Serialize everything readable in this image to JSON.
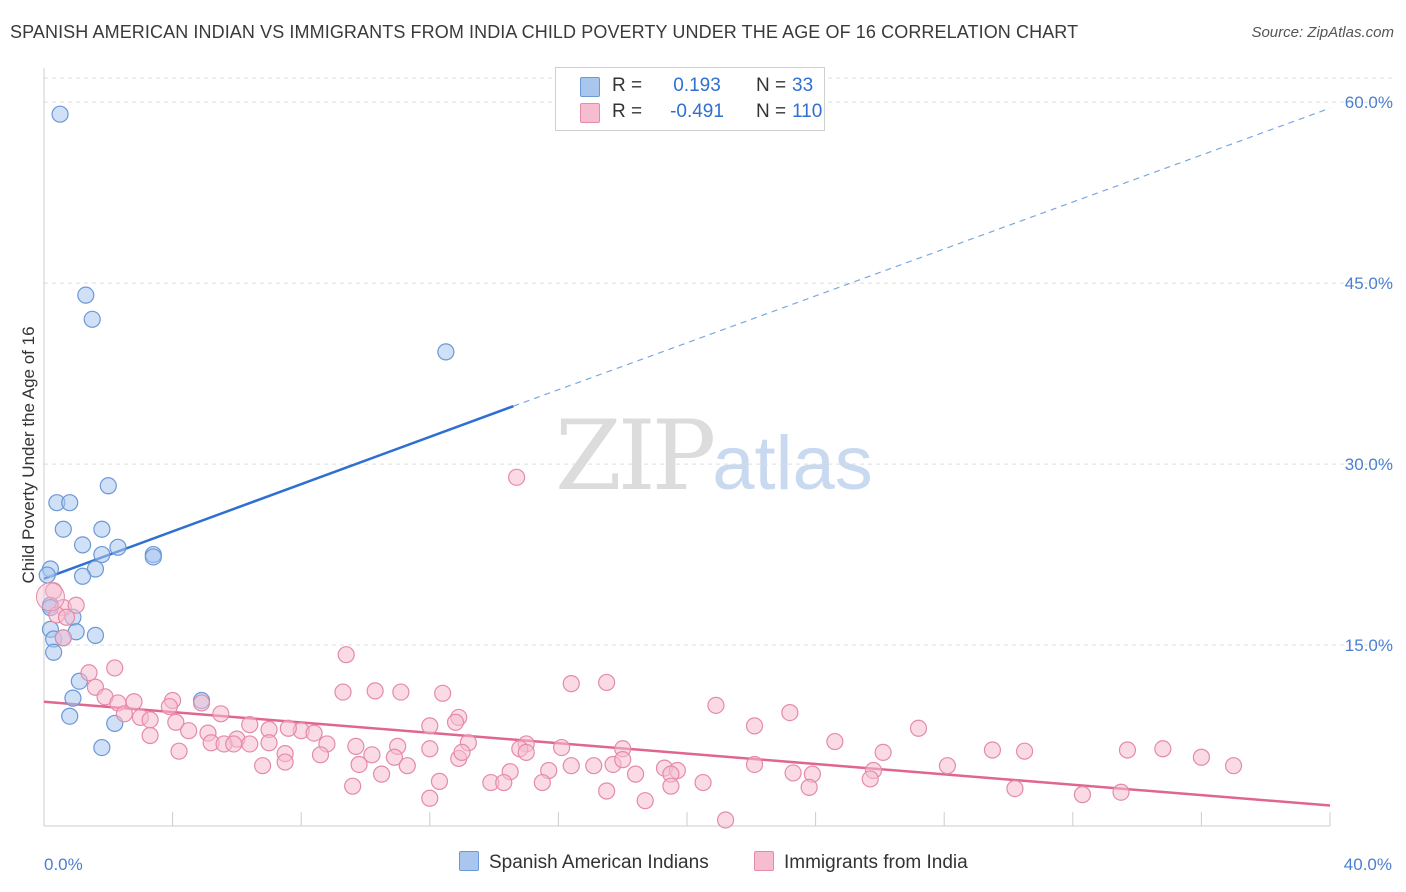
{
  "title": "SPANISH AMERICAN INDIAN VS IMMIGRANTS FROM INDIA CHILD POVERTY UNDER THE AGE OF 16 CORRELATION CHART",
  "source": "Source: ZipAtlas.com",
  "watermark": {
    "zip": "ZIP",
    "atlas": "atlas"
  },
  "legend": {
    "rows": [
      {
        "r_label": "R =",
        "r_value": "0.193",
        "n_label": "N =",
        "n_value": "33",
        "color": "#a9c6ef",
        "stroke": "#6b98d6"
      },
      {
        "r_label": "R =",
        "r_value": "-0.491",
        "n_label": "N =",
        "n_value": "110",
        "color": "#f6bdd0",
        "stroke": "#e58aa8"
      }
    ]
  },
  "bottom_legend": [
    {
      "label": "Spanish American Indians",
      "color": "#a9c6ef",
      "stroke": "#6b98d6"
    },
    {
      "label": "Immigrants from India",
      "color": "#f6bdd0",
      "stroke": "#e58aa8"
    }
  ],
  "chart_data": {
    "type": "scatter",
    "title": "SPANISH AMERICAN INDIAN VS IMMIGRANTS FROM INDIA CHILD POVERTY UNDER THE AGE OF 16 CORRELATION CHART",
    "xlabel": "",
    "ylabel": "Child Poverty Under the Age of 16",
    "xlim": [
      0,
      40
    ],
    "ylim": [
      0,
      62
    ],
    "x_tick_labels": [
      "0.0%",
      "40.0%"
    ],
    "y_ticks": [
      15,
      30,
      45,
      60
    ],
    "y_tick_labels": [
      "15.0%",
      "30.0%",
      "45.0%",
      "60.0%"
    ],
    "series": [
      {
        "name": "Spanish American Indians",
        "color": "#a9c6ef",
        "stroke": "#6b98d6",
        "points": [
          [
            0.5,
            59.0
          ],
          [
            1.3,
            44.0
          ],
          [
            1.5,
            42.0
          ],
          [
            12.5,
            39.3
          ],
          [
            2.0,
            28.2
          ],
          [
            0.4,
            26.8
          ],
          [
            0.8,
            26.8
          ],
          [
            0.6,
            24.6
          ],
          [
            1.8,
            24.6
          ],
          [
            1.2,
            23.3
          ],
          [
            2.3,
            23.1
          ],
          [
            1.8,
            22.5
          ],
          [
            3.4,
            22.5
          ],
          [
            3.4,
            22.3
          ],
          [
            0.2,
            21.3
          ],
          [
            1.6,
            21.3
          ],
          [
            1.2,
            20.7
          ],
          [
            0.1,
            20.8
          ],
          [
            0.2,
            18.3
          ],
          [
            0.9,
            17.3
          ],
          [
            0.2,
            16.3
          ],
          [
            1.0,
            16.1
          ],
          [
            1.6,
            15.8
          ],
          [
            0.3,
            15.5
          ],
          [
            0.6,
            15.6
          ],
          [
            0.3,
            14.4
          ],
          [
            1.1,
            12.0
          ],
          [
            0.9,
            10.6
          ],
          [
            4.9,
            10.4
          ],
          [
            0.8,
            9.1
          ],
          [
            2.2,
            8.5
          ],
          [
            1.8,
            6.5
          ],
          [
            0.2,
            18.1
          ]
        ]
      },
      {
        "name": "Immigrants from India",
        "color": "#f6bdd0",
        "stroke": "#e58aa8",
        "points": [
          [
            0.3,
            19.5
          ],
          [
            0.6,
            18.1
          ],
          [
            1.0,
            18.3
          ],
          [
            0.4,
            17.5
          ],
          [
            0.7,
            17.3
          ],
          [
            0.6,
            15.6
          ],
          [
            14.7,
            28.9
          ],
          [
            9.4,
            14.2
          ],
          [
            2.2,
            13.1
          ],
          [
            1.4,
            12.7
          ],
          [
            16.4,
            11.8
          ],
          [
            17.5,
            11.9
          ],
          [
            9.3,
            11.1
          ],
          [
            10.3,
            11.2
          ],
          [
            11.1,
            11.1
          ],
          [
            12.4,
            11.0
          ],
          [
            1.6,
            11.5
          ],
          [
            1.9,
            10.7
          ],
          [
            2.3,
            10.2
          ],
          [
            2.8,
            10.3
          ],
          [
            4.0,
            10.4
          ],
          [
            4.9,
            10.2
          ],
          [
            3.9,
            9.9
          ],
          [
            5.5,
            9.3
          ],
          [
            2.5,
            9.3
          ],
          [
            3.0,
            9.0
          ],
          [
            20.9,
            10.0
          ],
          [
            23.2,
            9.4
          ],
          [
            12.9,
            9.0
          ],
          [
            3.3,
            8.8
          ],
          [
            4.1,
            8.6
          ],
          [
            6.4,
            8.4
          ],
          [
            7.0,
            8.0
          ],
          [
            8.0,
            7.9
          ],
          [
            12.0,
            8.3
          ],
          [
            12.8,
            8.6
          ],
          [
            22.1,
            8.3
          ],
          [
            27.2,
            8.1
          ],
          [
            4.5,
            7.9
          ],
          [
            5.1,
            7.7
          ],
          [
            7.6,
            8.1
          ],
          [
            8.4,
            7.7
          ],
          [
            6.0,
            7.2
          ],
          [
            3.3,
            7.5
          ],
          [
            4.2,
            6.2
          ],
          [
            5.2,
            6.9
          ],
          [
            5.6,
            6.8
          ],
          [
            5.9,
            6.8
          ],
          [
            6.4,
            6.8
          ],
          [
            7.0,
            6.9
          ],
          [
            8.8,
            6.8
          ],
          [
            9.7,
            6.6
          ],
          [
            11.0,
            6.6
          ],
          [
            12.0,
            6.4
          ],
          [
            13.2,
            6.9
          ],
          [
            15.0,
            6.8
          ],
          [
            14.8,
            6.4
          ],
          [
            16.1,
            6.5
          ],
          [
            18.0,
            6.4
          ],
          [
            24.6,
            7.0
          ],
          [
            26.1,
            6.1
          ],
          [
            29.5,
            6.3
          ],
          [
            30.5,
            6.2
          ],
          [
            33.7,
            6.3
          ],
          [
            34.8,
            6.4
          ],
          [
            36.0,
            5.7
          ],
          [
            7.5,
            6.0
          ],
          [
            8.6,
            5.9
          ],
          [
            10.2,
            5.9
          ],
          [
            10.9,
            5.7
          ],
          [
            12.9,
            5.6
          ],
          [
            13.0,
            6.1
          ],
          [
            15.0,
            6.1
          ],
          [
            16.4,
            5.0
          ],
          [
            17.1,
            5.0
          ],
          [
            17.7,
            5.1
          ],
          [
            18.0,
            5.5
          ],
          [
            7.5,
            5.3
          ],
          [
            9.8,
            5.1
          ],
          [
            11.3,
            5.0
          ],
          [
            19.3,
            4.8
          ],
          [
            19.7,
            4.6
          ],
          [
            22.1,
            5.1
          ],
          [
            25.8,
            4.6
          ],
          [
            28.1,
            5.0
          ],
          [
            37.0,
            5.0
          ],
          [
            6.8,
            5.0
          ],
          [
            10.5,
            4.3
          ],
          [
            14.5,
            4.5
          ],
          [
            15.7,
            4.6
          ],
          [
            18.4,
            4.3
          ],
          [
            19.5,
            4.3
          ],
          [
            23.3,
            4.4
          ],
          [
            23.9,
            4.3
          ],
          [
            12.3,
            3.7
          ],
          [
            13.9,
            3.6
          ],
          [
            14.3,
            3.6
          ],
          [
            15.5,
            3.6
          ],
          [
            9.6,
            3.3
          ],
          [
            17.5,
            2.9
          ],
          [
            19.5,
            3.3
          ],
          [
            20.5,
            3.6
          ],
          [
            23.8,
            3.2
          ],
          [
            30.2,
            3.1
          ],
          [
            32.3,
            2.6
          ],
          [
            33.5,
            2.8
          ],
          [
            12.0,
            2.3
          ],
          [
            18.7,
            2.1
          ],
          [
            25.7,
            3.9
          ],
          [
            21.2,
            0.5
          ]
        ]
      }
    ],
    "trend_lines": [
      {
        "series": "Spanish American Indians",
        "x0": 0.0,
        "y0": 20.5,
        "x1": 14.6,
        "y1": 34.8,
        "dashed_to_x": 40.0,
        "dashed_to_y": 59.5
      },
      {
        "series": "Immigrants from India",
        "x0": 0.0,
        "y0": 10.3,
        "x1": 40.0,
        "y1": 1.7
      }
    ]
  }
}
